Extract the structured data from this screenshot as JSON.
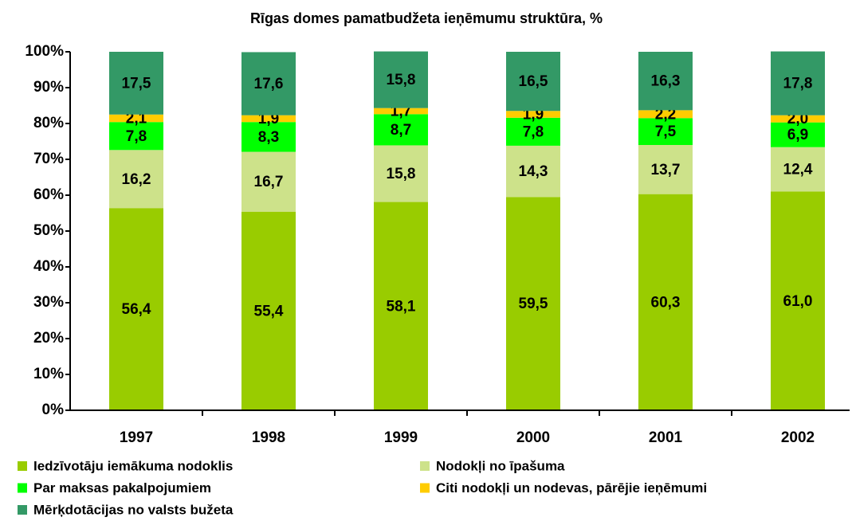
{
  "chart_data": {
    "type": "stacked_bar",
    "title": "Rīgas domes pamatbudžeta ieņēmumu struktūra, %",
    "categories": [
      "1997",
      "1998",
      "1999",
      "2000",
      "2001",
      "2002"
    ],
    "series": [
      {
        "name": "Iedzīvotāju iemākuma nodoklis",
        "color": "#99cc00",
        "values": [
          56.4,
          55.4,
          58.1,
          59.5,
          60.3,
          61.0
        ],
        "value_labels": [
          "56,4",
          "55,4",
          "58,1",
          "59,5",
          "60,3",
          "61,0"
        ]
      },
      {
        "name": "Nodokļi no īpašuma",
        "color": "#cde28a",
        "values": [
          16.2,
          16.7,
          15.8,
          14.3,
          13.7,
          12.4
        ],
        "value_labels": [
          "16,2",
          "16,7",
          "15,8",
          "14,3",
          "13,7",
          "12,4"
        ]
      },
      {
        "name": "Par maksas pakalpojumiem",
        "color": "#00ff00",
        "values": [
          7.8,
          8.3,
          8.7,
          7.8,
          7.5,
          6.9
        ],
        "value_labels": [
          "7,8",
          "8,3",
          "8,7",
          "7,8",
          "7,5",
          "6,9"
        ]
      },
      {
        "name": "Citi nodokļi un nodevas, pārējie ieņēmumi",
        "color": "#ffcc00",
        "values": [
          2.1,
          1.9,
          1.7,
          1.9,
          2.2,
          2.0
        ],
        "value_labels": [
          "2,1",
          "1,9",
          "1,7",
          "1,9",
          "2,2",
          "2,0"
        ]
      },
      {
        "name": "Mērķdotācijas no valsts bužeta",
        "color": "#339966",
        "values": [
          17.5,
          17.6,
          15.8,
          16.5,
          16.3,
          17.8
        ],
        "value_labels": [
          "17,5",
          "17,6",
          "15,8",
          "16,5",
          "16,3",
          "17,8"
        ]
      }
    ],
    "ylim": [
      0,
      100
    ],
    "yticks": [
      {
        "value": 0,
        "label": "0%"
      },
      {
        "value": 10,
        "label": "10%"
      },
      {
        "value": 20,
        "label": "20%"
      },
      {
        "value": 30,
        "label": "30%"
      },
      {
        "value": 40,
        "label": "40%"
      },
      {
        "value": 50,
        "label": "50%"
      },
      {
        "value": 60,
        "label": "60%"
      },
      {
        "value": 70,
        "label": "70%"
      },
      {
        "value": 80,
        "label": "80%"
      },
      {
        "value": 90,
        "label": "90%"
      },
      {
        "value": 100,
        "label": "100%"
      }
    ],
    "legend": "bottom"
  }
}
